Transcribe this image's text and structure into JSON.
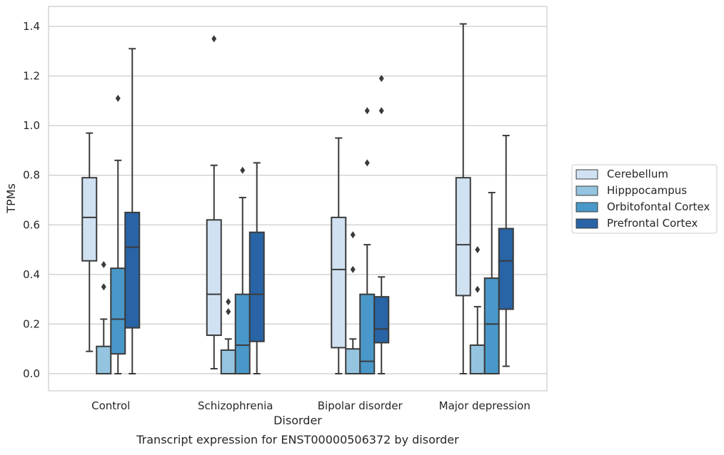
{
  "caption": "Transcript expression for ENST00000506372 by disorder",
  "chart_data": {
    "type": "box",
    "title": "",
    "xlabel": "Disorder",
    "ylabel": "TPMs",
    "ylim": [
      -0.07,
      1.48
    ],
    "yticks": [
      0.0,
      0.2,
      0.4,
      0.6,
      0.8,
      1.0,
      1.2,
      1.4
    ],
    "ytick_labels": [
      "0.0",
      "0.2",
      "0.4",
      "0.6",
      "0.8",
      "1.0",
      "1.2",
      "1.4"
    ],
    "grid": "horizontal",
    "legend_position": "right",
    "categories": [
      "Control",
      "Schizophrenia",
      "Bipolar disorder",
      "Major depression"
    ],
    "series": [
      {
        "name": "Cerebellum",
        "color": "#d0e1f2",
        "boxes": [
          {
            "min": 0.09,
            "q1": 0.455,
            "median": 0.63,
            "q3": 0.79,
            "max": 0.97,
            "outliers": []
          },
          {
            "min": 0.02,
            "q1": 0.155,
            "median": 0.32,
            "q3": 0.62,
            "max": 0.84,
            "outliers": [
              1.35
            ]
          },
          {
            "min": 0.0,
            "q1": 0.105,
            "median": 0.42,
            "q3": 0.63,
            "max": 0.95,
            "outliers": []
          },
          {
            "min": 0.0,
            "q1": 0.315,
            "median": 0.52,
            "q3": 0.79,
            "max": 1.41,
            "outliers": []
          }
        ]
      },
      {
        "name": "Hipppocampus",
        "color": "#94c4df",
        "boxes": [
          {
            "min": 0.0,
            "q1": 0.0,
            "median": 0.0,
            "q3": 0.11,
            "max": 0.22,
            "outliers": [
              0.35,
              0.44
            ]
          },
          {
            "min": 0.0,
            "q1": 0.0,
            "median": 0.0,
            "q3": 0.095,
            "max": 0.14,
            "outliers": [
              0.25,
              0.29
            ]
          },
          {
            "min": 0.0,
            "q1": 0.0,
            "median": 0.0,
            "q3": 0.1,
            "max": 0.14,
            "outliers": [
              0.42,
              0.56
            ]
          },
          {
            "min": 0.0,
            "q1": 0.0,
            "median": 0.0,
            "q3": 0.115,
            "max": 0.27,
            "outliers": [
              0.34,
              0.5
            ]
          }
        ]
      },
      {
        "name": "Orbitofontal Cortex",
        "color": "#4a98c9",
        "boxes": [
          {
            "min": 0.0,
            "q1": 0.08,
            "median": 0.22,
            "q3": 0.425,
            "max": 0.86,
            "outliers": [
              1.11
            ]
          },
          {
            "min": 0.0,
            "q1": 0.0,
            "median": 0.115,
            "q3": 0.32,
            "max": 0.71,
            "outliers": [
              0.82
            ]
          },
          {
            "min": 0.0,
            "q1": 0.0,
            "median": 0.05,
            "q3": 0.32,
            "max": 0.52,
            "outliers": [
              0.85,
              1.06
            ]
          },
          {
            "min": 0.0,
            "q1": 0.0,
            "median": 0.2,
            "q3": 0.385,
            "max": 0.73,
            "outliers": []
          }
        ]
      },
      {
        "name": "Prefrontal Cortex",
        "color": "#2864a6",
        "boxes": [
          {
            "min": 0.0,
            "q1": 0.185,
            "median": 0.51,
            "q3": 0.65,
            "max": 1.31,
            "outliers": []
          },
          {
            "min": 0.0,
            "q1": 0.13,
            "median": 0.32,
            "q3": 0.57,
            "max": 0.85,
            "outliers": []
          },
          {
            "min": 0.0,
            "q1": 0.125,
            "median": 0.18,
            "q3": 0.31,
            "max": 0.39,
            "outliers": [
              1.06,
              1.19
            ]
          },
          {
            "min": 0.03,
            "q1": 0.26,
            "median": 0.455,
            "q3": 0.585,
            "max": 0.96,
            "outliers": []
          }
        ]
      }
    ]
  }
}
